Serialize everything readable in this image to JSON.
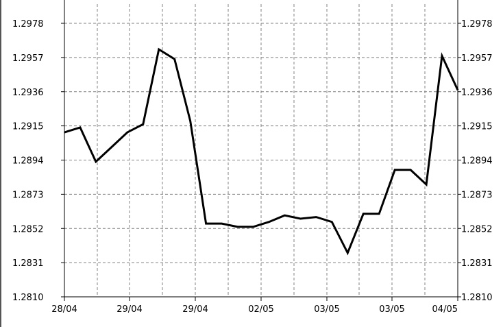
{
  "chart_data": {
    "type": "line",
    "title": "",
    "xlabel": "",
    "ylabel": "",
    "ylim": [
      1.281,
      1.2978
    ],
    "y_ticks": [
      "1.2810",
      "1.2831",
      "1.2852",
      "1.2873",
      "1.2894",
      "1.2915",
      "1.2936",
      "1.2957",
      "1.2978"
    ],
    "y_ticks_right": [
      "1.2810",
      "1.2831",
      "1.2852",
      "1.2873",
      "1.2894",
      "1.2915",
      "1.2936",
      "1.2957",
      "1.2978"
    ],
    "x_tick_labels": [
      "28/04",
      "29/04",
      "29/04",
      "02/05",
      "03/05",
      "03/05",
      "04/05"
    ],
    "grid": true,
    "series": [
      {
        "values": [
          1.2911,
          1.2914,
          1.2893,
          1.2902,
          1.2911,
          1.2916,
          1.2962,
          1.2956,
          1.2918,
          1.2855,
          1.2855,
          1.2853,
          1.2853,
          1.2856,
          1.286,
          1.2858,
          1.2859,
          1.2856,
          1.2837,
          1.2861,
          1.2861,
          1.2888,
          1.2888,
          1.2879,
          1.2958,
          1.2937
        ]
      }
    ],
    "colors": {
      "line": "#000000",
      "grid": "#808080",
      "axis": "#000000",
      "background": "#ffffff"
    }
  }
}
